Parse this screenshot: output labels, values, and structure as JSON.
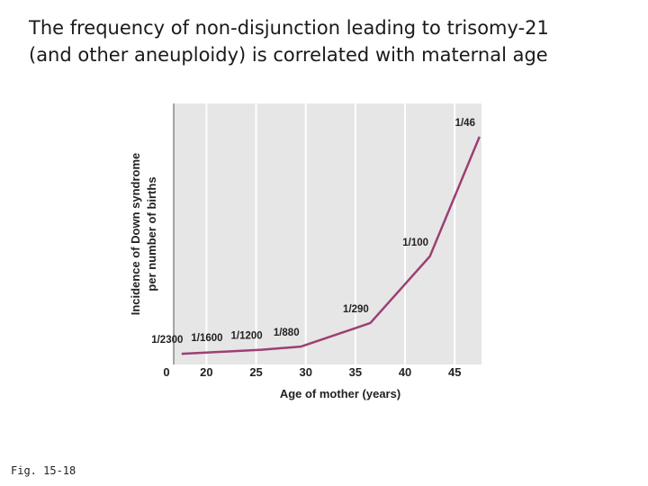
{
  "slide": {
    "title_lines": [
      "The frequency of non-disjunction leading to trisomy-21",
      "(and other aneuploidy) is correlated with maternal age"
    ],
    "footer": "Fig. 15-18"
  },
  "chart_data": {
    "type": "line",
    "y_label_lines": [
      "Incidence of Down syndrome",
      "per number of births"
    ],
    "x_label": "Age of mother (years)",
    "x": [
      17.5,
      21.5,
      25.5,
      29.5,
      36.5,
      42.5,
      47.5
    ],
    "values": [
      0.000435,
      0.000625,
      0.000833,
      0.001136,
      0.003448,
      0.01,
      0.021739
    ],
    "value_labels": [
      "1/2300",
      "1/1600",
      "1/1200",
      "1/880",
      "1/290",
      "1/100",
      "1/46"
    ],
    "color": "#9c3f73",
    "xlim": [
      16.7,
      47.7
    ],
    "xticks": [
      20,
      25,
      30,
      35,
      40,
      45
    ],
    "x_break_label": "0",
    "ylim": [
      0,
      0.025
    ],
    "grid": true
  }
}
